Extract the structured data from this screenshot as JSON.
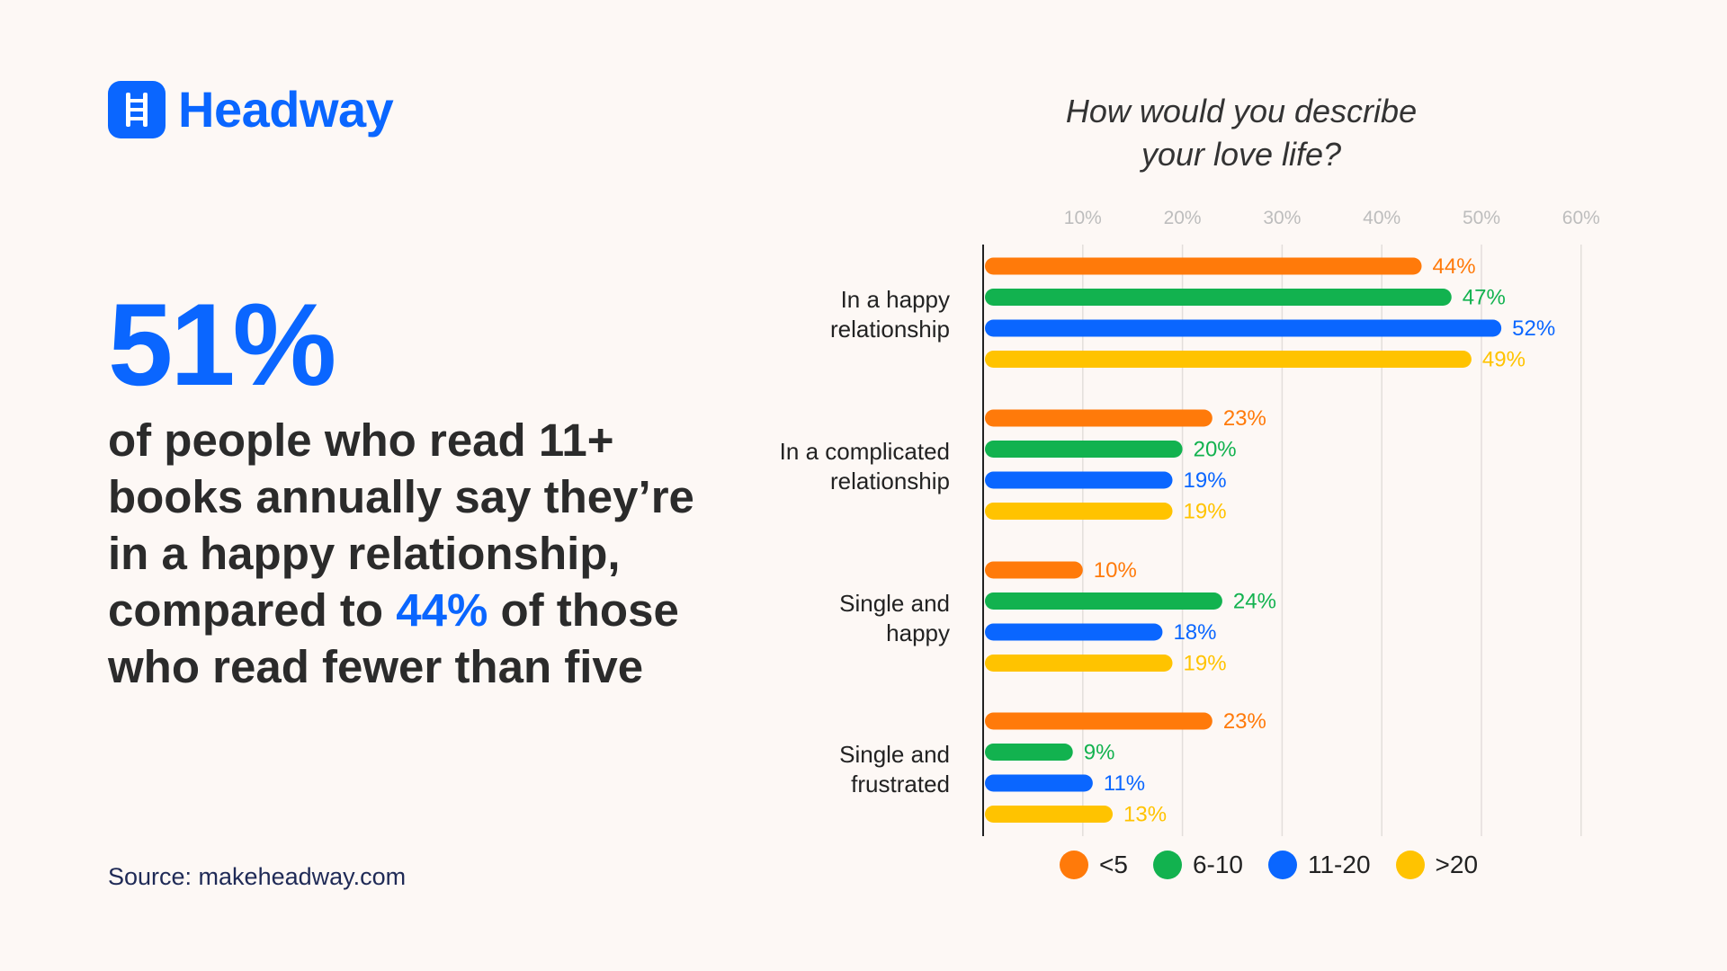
{
  "brand": {
    "name": "Headway",
    "color": "#0a66ff"
  },
  "headline": {
    "stat": "51%",
    "line1": "of people who read 11+ books annually say they’re in a happy relationship, compared to",
    "highlight": "44%",
    "line2": "of those who read fewer than five"
  },
  "source": "Source: makeheadway.com",
  "chart_data": {
    "type": "bar",
    "orientation": "horizontal",
    "title": "How would you describe your love life?",
    "title_lines": [
      "How would you describe",
      "your love life?"
    ],
    "categories": [
      "In a happy relationship",
      "In a complicated relationship",
      "Single and happy",
      "Single and frustrated"
    ],
    "category_lines": [
      [
        "In a happy",
        "relationship"
      ],
      [
        "In a complicated",
        "relationship"
      ],
      [
        "Single and",
        "happy"
      ],
      [
        "Single and",
        "frustrated"
      ]
    ],
    "series": [
      {
        "name": "<5",
        "color": "#ff7a0a",
        "values": [
          44,
          23,
          10,
          23
        ]
      },
      {
        "name": "6-10",
        "color": "#12b24f",
        "values": [
          47,
          20,
          24,
          9
        ]
      },
      {
        "name": "11-20",
        "color": "#0a66ff",
        "values": [
          52,
          19,
          18,
          11
        ]
      },
      {
        "name": ">20",
        "color": "#ffc300",
        "values": [
          49,
          19,
          19,
          13
        ]
      }
    ],
    "value_suffix": "%",
    "xticks": [
      "10%",
      "20%",
      "30%",
      "40%",
      "50%",
      "60%"
    ],
    "xtick_values": [
      10,
      20,
      30,
      40,
      50,
      60
    ],
    "xlim": [
      0,
      60
    ],
    "grid": true,
    "legend_position": "bottom"
  }
}
